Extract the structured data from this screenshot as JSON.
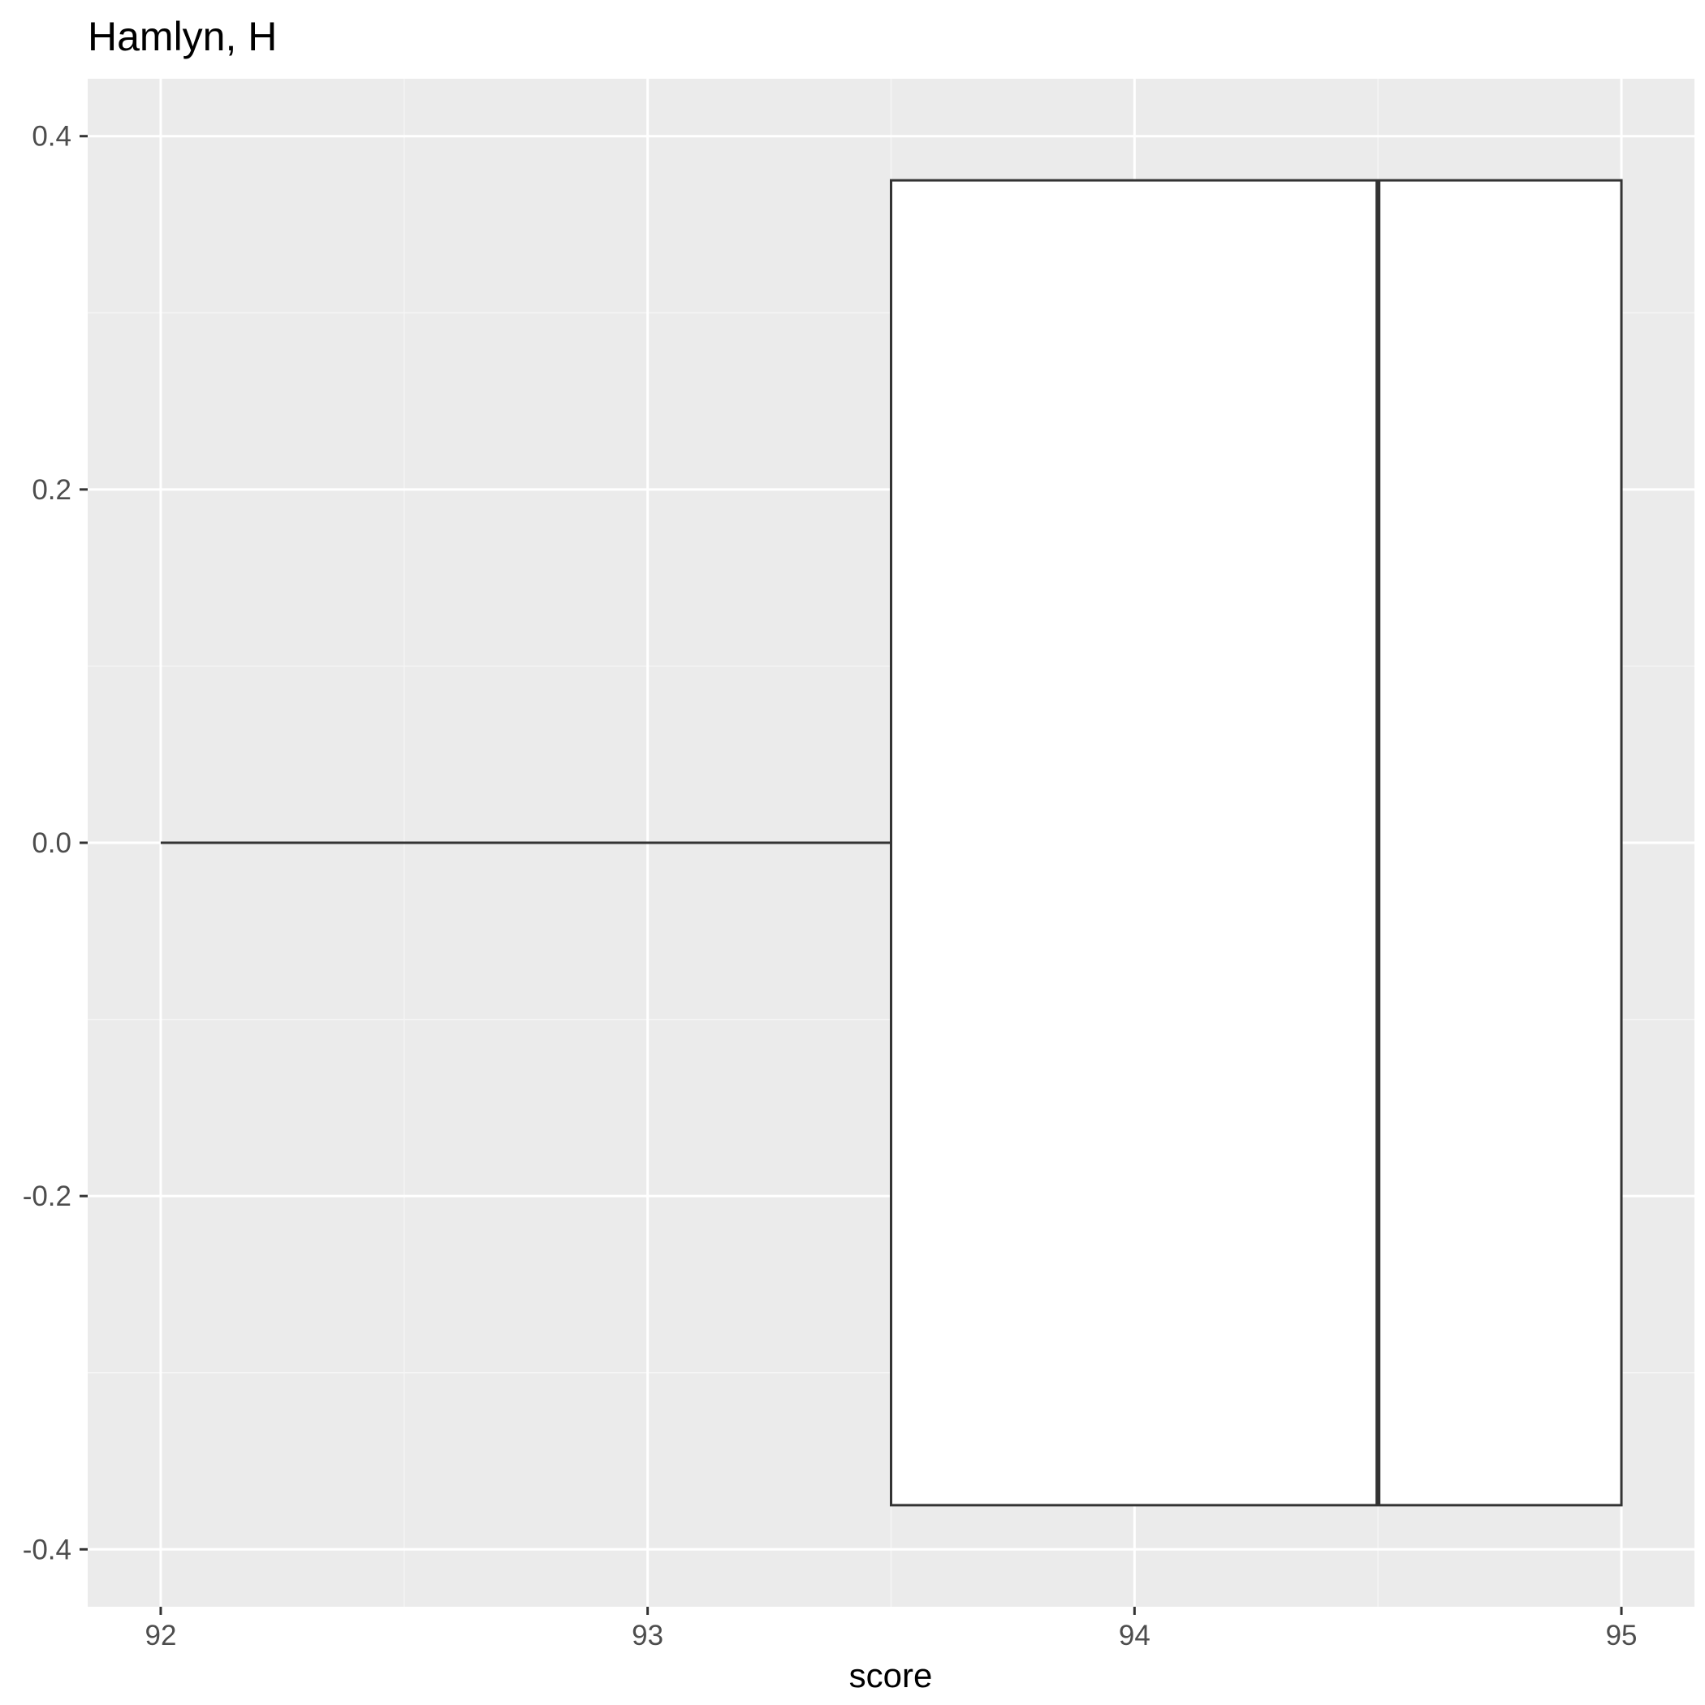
{
  "chart_data": {
    "type": "boxplot",
    "orientation": "horizontal",
    "title": "Hamlyn, H",
    "xlabel": "score",
    "ylabel": "",
    "xlim": [
      91.85,
      95.15
    ],
    "ylim": [
      -0.4325,
      0.4325
    ],
    "x_ticks": [
      92,
      93,
      94,
      95
    ],
    "x_tick_labels": [
      "92",
      "93",
      "94",
      "95"
    ],
    "y_ticks": [
      0.4,
      0.2,
      0.0,
      -0.2,
      -0.4
    ],
    "y_tick_labels": [
      "0.4",
      "0.2",
      "0.0",
      "-0.2",
      "-0.4"
    ],
    "box": {
      "min": 92,
      "q1": 93.5,
      "median": 94.5,
      "q3": 95,
      "max": 95,
      "center": 0,
      "half_width": 0.375
    },
    "grid": true,
    "colors": {
      "panel_background": "#ebebeb",
      "grid_major": "#ffffff",
      "grid_minor": "#f5f5f5",
      "box_fill": "#ffffff",
      "box_stroke": "#333333"
    }
  }
}
